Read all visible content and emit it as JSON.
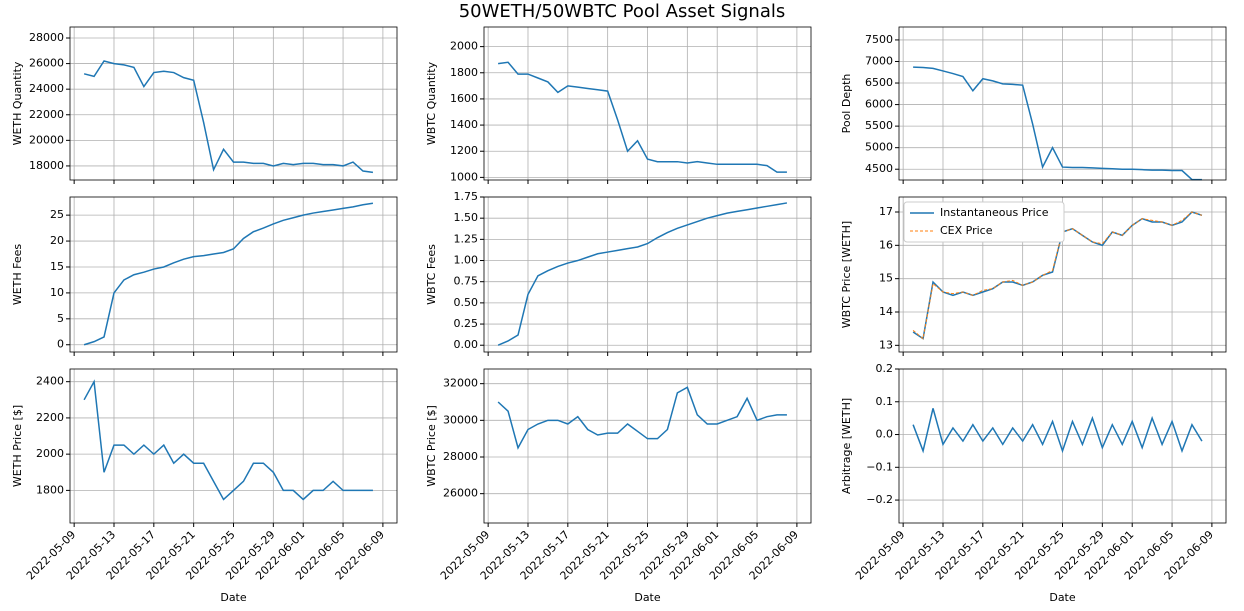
{
  "title": "50WETH/50WBTC Pool Asset Signals",
  "chart_data": [
    {
      "type": "line",
      "ylabel": "WETH Quantity",
      "color": "#1f77b4",
      "x": [
        "2022-05-10",
        "2022-05-11",
        "2022-05-12",
        "2022-05-13",
        "2022-05-14",
        "2022-05-15",
        "2022-05-16",
        "2022-05-17",
        "2022-05-18",
        "2022-05-19",
        "2022-05-20",
        "2022-05-21",
        "2022-05-22",
        "2022-05-23",
        "2022-05-24",
        "2022-05-25",
        "2022-05-26",
        "2022-05-27",
        "2022-05-28",
        "2022-05-29",
        "2022-05-30",
        "2022-05-31",
        "2022-06-01",
        "2022-06-02",
        "2022-06-03",
        "2022-06-04",
        "2022-06-05",
        "2022-06-06",
        "2022-06-07",
        "2022-06-08"
      ],
      "values": [
        25200,
        25000,
        26200,
        26000,
        25900,
        25700,
        24200,
        25300,
        25400,
        25300,
        24900,
        24700,
        21400,
        17700,
        19300,
        18300,
        18300,
        18200,
        18200,
        18000,
        18200,
        18100,
        18200,
        18200,
        18100,
        18100,
        18000,
        18300,
        17600,
        17500
      ],
      "xlim": [
        "2022-05-08T14:00",
        "2022-06-10T10:00"
      ],
      "ylim": [
        16900,
        28860
      ],
      "yticks": [
        18000,
        20000,
        22000,
        24000,
        26000,
        28000
      ],
      "grid": true
    },
    {
      "type": "line",
      "ylabel": "WBTC Quantity",
      "color": "#1f77b4",
      "x": [
        "2022-05-10",
        "2022-05-11",
        "2022-05-12",
        "2022-05-13",
        "2022-05-14",
        "2022-05-15",
        "2022-05-16",
        "2022-05-17",
        "2022-05-18",
        "2022-05-19",
        "2022-05-20",
        "2022-05-21",
        "2022-05-22",
        "2022-05-23",
        "2022-05-24",
        "2022-05-25",
        "2022-05-26",
        "2022-05-27",
        "2022-05-28",
        "2022-05-29",
        "2022-05-30",
        "2022-05-31",
        "2022-06-01",
        "2022-06-02",
        "2022-06-03",
        "2022-06-04",
        "2022-06-05",
        "2022-06-06",
        "2022-06-07",
        "2022-06-08"
      ],
      "values": [
        1870,
        1880,
        1790,
        1790,
        1760,
        1730,
        1650,
        1700,
        1690,
        1680,
        1670,
        1660,
        1440,
        1200,
        1280,
        1140,
        1120,
        1120,
        1120,
        1110,
        1120,
        1110,
        1100,
        1100,
        1100,
        1100,
        1100,
        1090,
        1040,
        1040
      ],
      "xlim": [
        "2022-05-08T14:00",
        "2022-06-10T10:00"
      ],
      "ylim": [
        980,
        2150
      ],
      "yticks": [
        1000,
        1200,
        1400,
        1600,
        1800,
        2000
      ],
      "grid": true
    },
    {
      "type": "line",
      "ylabel": "Pool Depth",
      "color": "#1f77b4",
      "x": [
        "2022-05-10",
        "2022-05-11",
        "2022-05-12",
        "2022-05-13",
        "2022-05-14",
        "2022-05-15",
        "2022-05-16",
        "2022-05-17",
        "2022-05-18",
        "2022-05-19",
        "2022-05-20",
        "2022-05-21",
        "2022-05-22",
        "2022-05-23",
        "2022-05-24",
        "2022-05-25",
        "2022-05-26",
        "2022-05-27",
        "2022-05-28",
        "2022-05-29",
        "2022-05-30",
        "2022-05-31",
        "2022-06-01",
        "2022-06-02",
        "2022-06-03",
        "2022-06-04",
        "2022-06-05",
        "2022-06-06",
        "2022-06-07",
        "2022-06-08"
      ],
      "values": [
        6870,
        6860,
        6840,
        6780,
        6720,
        6650,
        6320,
        6600,
        6550,
        6480,
        6470,
        6450,
        5550,
        4550,
        5000,
        4550,
        4540,
        4540,
        4530,
        4520,
        4510,
        4500,
        4500,
        4490,
        4480,
        4480,
        4470,
        4470,
        4260,
        4260
      ],
      "xlim": [
        "2022-05-08T14:00",
        "2022-06-10T10:00"
      ],
      "ylim": [
        4250,
        7800
      ],
      "yticks": [
        4500,
        5000,
        5500,
        6000,
        6500,
        7000,
        7500
      ],
      "grid": true
    },
    {
      "type": "line",
      "ylabel": "WETH Fees",
      "color": "#1f77b4",
      "x": [
        "2022-05-10",
        "2022-05-11",
        "2022-05-12",
        "2022-05-13",
        "2022-05-14",
        "2022-05-15",
        "2022-05-16",
        "2022-05-17",
        "2022-05-18",
        "2022-05-19",
        "2022-05-20",
        "2022-05-21",
        "2022-05-22",
        "2022-05-23",
        "2022-05-24",
        "2022-05-25",
        "2022-05-26",
        "2022-05-27",
        "2022-05-28",
        "2022-05-29",
        "2022-05-30",
        "2022-05-31",
        "2022-06-01",
        "2022-06-02",
        "2022-06-03",
        "2022-06-04",
        "2022-06-05",
        "2022-06-06",
        "2022-06-07",
        "2022-06-08"
      ],
      "values": [
        0,
        0.6,
        1.5,
        10,
        12.5,
        13.5,
        14,
        14.6,
        15,
        15.8,
        16.5,
        17,
        17.2,
        17.5,
        17.8,
        18.5,
        20.5,
        21.8,
        22.5,
        23.3,
        24,
        24.5,
        25,
        25.4,
        25.7,
        26,
        26.3,
        26.6,
        27,
        27.3
      ],
      "xlim": [
        "2022-05-08T14:00",
        "2022-06-10T10:00"
      ],
      "ylim": [
        -1.4,
        28.5
      ],
      "yticks": [
        0,
        5,
        10,
        15,
        20,
        25
      ],
      "grid": true
    },
    {
      "type": "line",
      "ylabel": "WBTC Fees",
      "color": "#1f77b4",
      "x": [
        "2022-05-10",
        "2022-05-11",
        "2022-05-12",
        "2022-05-13",
        "2022-05-14",
        "2022-05-15",
        "2022-05-16",
        "2022-05-17",
        "2022-05-18",
        "2022-05-19",
        "2022-05-20",
        "2022-05-21",
        "2022-05-22",
        "2022-05-23",
        "2022-05-24",
        "2022-05-25",
        "2022-05-26",
        "2022-05-27",
        "2022-05-28",
        "2022-05-29",
        "2022-05-30",
        "2022-05-31",
        "2022-06-01",
        "2022-06-02",
        "2022-06-03",
        "2022-06-04",
        "2022-06-05",
        "2022-06-06",
        "2022-06-07",
        "2022-06-08"
      ],
      "values": [
        0,
        0.05,
        0.12,
        0.6,
        0.82,
        0.88,
        0.93,
        0.97,
        1.0,
        1.04,
        1.08,
        1.1,
        1.12,
        1.14,
        1.16,
        1.2,
        1.27,
        1.33,
        1.38,
        1.42,
        1.46,
        1.5,
        1.53,
        1.56,
        1.58,
        1.6,
        1.62,
        1.64,
        1.66,
        1.68
      ],
      "xlim": [
        "2022-05-08T14:00",
        "2022-06-10T10:00"
      ],
      "ylim": [
        -0.08,
        1.75
      ],
      "yticks": [
        {
          "value": 0,
          "label": "0.00"
        },
        {
          "value": 0.25,
          "label": "0.25"
        },
        {
          "value": 0.5,
          "label": "0.50"
        },
        {
          "value": 0.75,
          "label": "0.75"
        },
        {
          "value": 1,
          "label": "1.00"
        },
        {
          "value": 1.25,
          "label": "1.25"
        },
        {
          "value": 1.5,
          "label": "1.50"
        },
        {
          "value": 1.75,
          "label": "1.75"
        }
      ],
      "grid": true
    },
    {
      "type": "line",
      "ylabel": "WBTC Price [WETH]",
      "legend": "upper left",
      "x": [
        "2022-05-10",
        "2022-05-11",
        "2022-05-12",
        "2022-05-13",
        "2022-05-14",
        "2022-05-15",
        "2022-05-16",
        "2022-05-17",
        "2022-05-18",
        "2022-05-19",
        "2022-05-20",
        "2022-05-21",
        "2022-05-22",
        "2022-05-23",
        "2022-05-24",
        "2022-05-25",
        "2022-05-26",
        "2022-05-27",
        "2022-05-28",
        "2022-05-29",
        "2022-05-30",
        "2022-05-31",
        "2022-06-01",
        "2022-06-02",
        "2022-06-03",
        "2022-06-04",
        "2022-06-05",
        "2022-06-06",
        "2022-06-07",
        "2022-06-08"
      ],
      "series": [
        {
          "name": "Instantaneous Price",
          "color": "#1f77b4",
          "linestyle": "solid",
          "values": [
            13.4,
            13.2,
            14.9,
            14.6,
            14.5,
            14.6,
            14.5,
            14.6,
            14.7,
            14.9,
            14.9,
            14.8,
            14.9,
            15.1,
            15.2,
            16.4,
            16.5,
            16.3,
            16.1,
            16.0,
            16.4,
            16.3,
            16.6,
            16.8,
            16.7,
            16.7,
            16.6,
            16.7,
            17.0,
            16.9
          ]
        },
        {
          "name": "CEX Price",
          "color": "#ff7f0e",
          "linestyle": "dashed",
          "values": [
            13.45,
            13.2,
            14.85,
            14.6,
            14.55,
            14.6,
            14.5,
            14.65,
            14.7,
            14.9,
            14.95,
            14.8,
            14.9,
            15.1,
            15.25,
            16.4,
            16.5,
            16.3,
            16.1,
            16.05,
            16.4,
            16.3,
            16.6,
            16.8,
            16.75,
            16.7,
            16.6,
            16.75,
            17.0,
            16.9
          ]
        }
      ],
      "xlim": [
        "2022-05-08T14:00",
        "2022-06-10T10:00"
      ],
      "ylim": [
        12.8,
        17.45
      ],
      "yticks": [
        13,
        14,
        15,
        16,
        17
      ],
      "grid": true
    },
    {
      "type": "line",
      "ylabel": "WETH Price [$]",
      "xlabel": "Date",
      "color": "#1f77b4",
      "x": [
        "2022-05-10",
        "2022-05-11",
        "2022-05-12",
        "2022-05-13",
        "2022-05-14",
        "2022-05-15",
        "2022-05-16",
        "2022-05-17",
        "2022-05-18",
        "2022-05-19",
        "2022-05-20",
        "2022-05-21",
        "2022-05-22",
        "2022-05-23",
        "2022-05-24",
        "2022-05-25",
        "2022-05-26",
        "2022-05-27",
        "2022-05-28",
        "2022-05-29",
        "2022-05-30",
        "2022-05-31",
        "2022-06-01",
        "2022-06-02",
        "2022-06-03",
        "2022-06-04",
        "2022-06-05",
        "2022-06-06",
        "2022-06-07",
        "2022-06-08"
      ],
      "values": [
        2300,
        2400,
        1900,
        2050,
        2050,
        2000,
        2050,
        2000,
        2050,
        1950,
        2000,
        1950,
        1950,
        1850,
        1750,
        1800,
        1850,
        1950,
        1950,
        1900,
        1800,
        1800,
        1750,
        1800,
        1800,
        1850,
        1800,
        1800,
        1800,
        1800
      ],
      "xlim": [
        "2022-05-08T14:00",
        "2022-06-10T10:00"
      ],
      "ylim": [
        1620,
        2470
      ],
      "yticks": [
        1800,
        2000,
        2200,
        2400
      ],
      "xticks": [
        "2022-05-09",
        "2022-05-13",
        "2022-05-17",
        "2022-05-21",
        "2022-05-25",
        "2022-05-29",
        "2022-06-01",
        "2022-06-05",
        "2022-06-09"
      ],
      "grid": true
    },
    {
      "type": "line",
      "ylabel": "WBTC Price [$]",
      "xlabel": "Date",
      "color": "#1f77b4",
      "x": [
        "2022-05-10",
        "2022-05-11",
        "2022-05-12",
        "2022-05-13",
        "2022-05-14",
        "2022-05-15",
        "2022-05-16",
        "2022-05-17",
        "2022-05-18",
        "2022-05-19",
        "2022-05-20",
        "2022-05-21",
        "2022-05-22",
        "2022-05-23",
        "2022-05-24",
        "2022-05-25",
        "2022-05-26",
        "2022-05-27",
        "2022-05-28",
        "2022-05-29",
        "2022-05-30",
        "2022-05-31",
        "2022-06-01",
        "2022-06-02",
        "2022-06-03",
        "2022-06-04",
        "2022-06-05",
        "2022-06-06",
        "2022-06-07",
        "2022-06-08"
      ],
      "values": [
        31000,
        30500,
        28500,
        29500,
        29800,
        30000,
        30000,
        29800,
        30200,
        29500,
        29200,
        29300,
        29300,
        29800,
        29400,
        29000,
        29000,
        29500,
        31500,
        31800,
        30300,
        29800,
        29800,
        30000,
        30200,
        31200,
        30000,
        30200,
        30300,
        30300
      ],
      "xlim": [
        "2022-05-08T14:00",
        "2022-06-10T10:00"
      ],
      "ylim": [
        24400,
        32800
      ],
      "yticks": [
        26000,
        28000,
        30000,
        32000
      ],
      "xticks": [
        "2022-05-09",
        "2022-05-13",
        "2022-05-17",
        "2022-05-21",
        "2022-05-25",
        "2022-05-29",
        "2022-06-01",
        "2022-06-05",
        "2022-06-09"
      ],
      "grid": true
    },
    {
      "type": "line",
      "ylabel": "Arbitrage [WETH]",
      "xlabel": "Date",
      "color": "#1f77b4",
      "x": [
        "2022-05-10",
        "2022-05-11",
        "2022-05-12",
        "2022-05-13",
        "2022-05-14",
        "2022-05-15",
        "2022-05-16",
        "2022-05-17",
        "2022-05-18",
        "2022-05-19",
        "2022-05-20",
        "2022-05-21",
        "2022-05-22",
        "2022-05-23",
        "2022-05-24",
        "2022-05-25",
        "2022-05-26",
        "2022-05-27",
        "2022-05-28",
        "2022-05-29",
        "2022-05-30",
        "2022-05-31",
        "2022-06-01",
        "2022-06-02",
        "2022-06-03",
        "2022-06-04",
        "2022-06-05",
        "2022-06-06",
        "2022-06-07",
        "2022-06-08"
      ],
      "values": [
        0.03,
        -0.05,
        0.08,
        -0.03,
        0.02,
        -0.02,
        0.03,
        -0.02,
        0.02,
        -0.03,
        0.02,
        -0.02,
        0.03,
        -0.03,
        0.04,
        -0.05,
        0.04,
        -0.03,
        0.05,
        -0.04,
        0.03,
        -0.03,
        0.04,
        -0.04,
        0.05,
        -0.03,
        0.04,
        -0.05,
        0.03,
        -0.02
      ],
      "xlim": [
        "2022-05-08T14:00",
        "2022-06-10T10:00"
      ],
      "ylim": [
        -0.27,
        0.2
      ],
      "yticks": [
        {
          "value": -0.2,
          "label": "−0.2"
        },
        {
          "value": -0.1,
          "label": "−0.1"
        },
        {
          "value": 0,
          "label": "0.0"
        },
        0.1,
        0.2
      ],
      "xticks": [
        "2022-05-09",
        "2022-05-13",
        "2022-05-17",
        "2022-05-21",
        "2022-05-25",
        "2022-05-29",
        "2022-06-01",
        "2022-06-05",
        "2022-06-09"
      ],
      "grid": true
    }
  ]
}
